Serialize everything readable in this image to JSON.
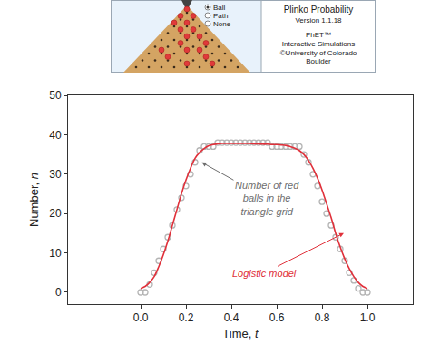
{
  "chart_data": {
    "type": "scatter",
    "x_label": "Time, t",
    "y_label": "Number, n",
    "xlim": [
      -0.32,
      1.2
    ],
    "ylim": [
      -3,
      50
    ],
    "xticks": [
      {
        "value": 0,
        "label": "0.0"
      },
      {
        "value": 0.2,
        "label": "0.2"
      },
      {
        "value": 0.4,
        "label": "0.4"
      },
      {
        "value": 0.6,
        "label": "0.6"
      },
      {
        "value": 0.8,
        "label": "0.8"
      },
      {
        "value": 1,
        "label": "1.0"
      }
    ],
    "yticks": [
      0,
      10,
      20,
      30,
      40,
      50
    ],
    "grid": false,
    "x": [
      0,
      0.02,
      0.04,
      0.06,
      0.08,
      0.1,
      0.12,
      0.14,
      0.16,
      0.18,
      0.2,
      0.22,
      0.24,
      0.26,
      0.28,
      0.3,
      0.32,
      0.34,
      0.36,
      0.38,
      0.4,
      0.42,
      0.44,
      0.46,
      0.48,
      0.5,
      0.52,
      0.54,
      0.56,
      0.58,
      0.6,
      0.62,
      0.64,
      0.66,
      0.68,
      0.7,
      0.72,
      0.74,
      0.76,
      0.78,
      0.8,
      0.82,
      0.84,
      0.86,
      0.88,
      0.9,
      0.92,
      0.94,
      0.96,
      0.98,
      1
    ],
    "series": [
      {
        "name": "Number of red balls in the triangle grid",
        "type": "scatter",
        "marker": "circle",
        "color": "#b4b4b4",
        "values": [
          0,
          0,
          2,
          5,
          8,
          11,
          14,
          17,
          21,
          24,
          27,
          30,
          33,
          36,
          37,
          37,
          37,
          38,
          38,
          38,
          38,
          38,
          38,
          38,
          38,
          38,
          38,
          38,
          38,
          37,
          37,
          37,
          37,
          37,
          37,
          37,
          35,
          33,
          30,
          27,
          23,
          20,
          17,
          14,
          11,
          8,
          5,
          3,
          1,
          0,
          0
        ]
      },
      {
        "name": "Logistic model",
        "type": "line",
        "line_style": "solid",
        "color": "#e0303a",
        "values": [
          1,
          1.5,
          2.5,
          4,
          6.5,
          9.5,
          13,
          17,
          21,
          25,
          28.5,
          31.5,
          34,
          35.5,
          36.5,
          37.2,
          37.5,
          37.7,
          37.8,
          37.8,
          37.8,
          37.8,
          37.8,
          37.8,
          37.8,
          37.7,
          37.7,
          37.6,
          37.6,
          37.5,
          37.5,
          37.4,
          37.3,
          37,
          36.6,
          36,
          35,
          33.5,
          31.5,
          29,
          26,
          22.5,
          19,
          15,
          11.5,
          8.5,
          6,
          4,
          2.5,
          1.5,
          1
        ]
      }
    ],
    "annotations": [
      {
        "lines": [
          "Number of red",
          "balls in the",
          "triangle grid"
        ],
        "color": "#6e6e6e"
      },
      {
        "lines": [
          "Logistic model"
        ],
        "color": "#e0303a"
      }
    ],
    "inset": {
      "options": [
        "Ball",
        "Path",
        "None"
      ],
      "title": "Plinko Probability",
      "version": "Version 1.1.18",
      "brand": "PhET™",
      "subtitle": "Interactive Simulations",
      "credit": [
        "©University of Colorado",
        "Boulder"
      ]
    }
  }
}
